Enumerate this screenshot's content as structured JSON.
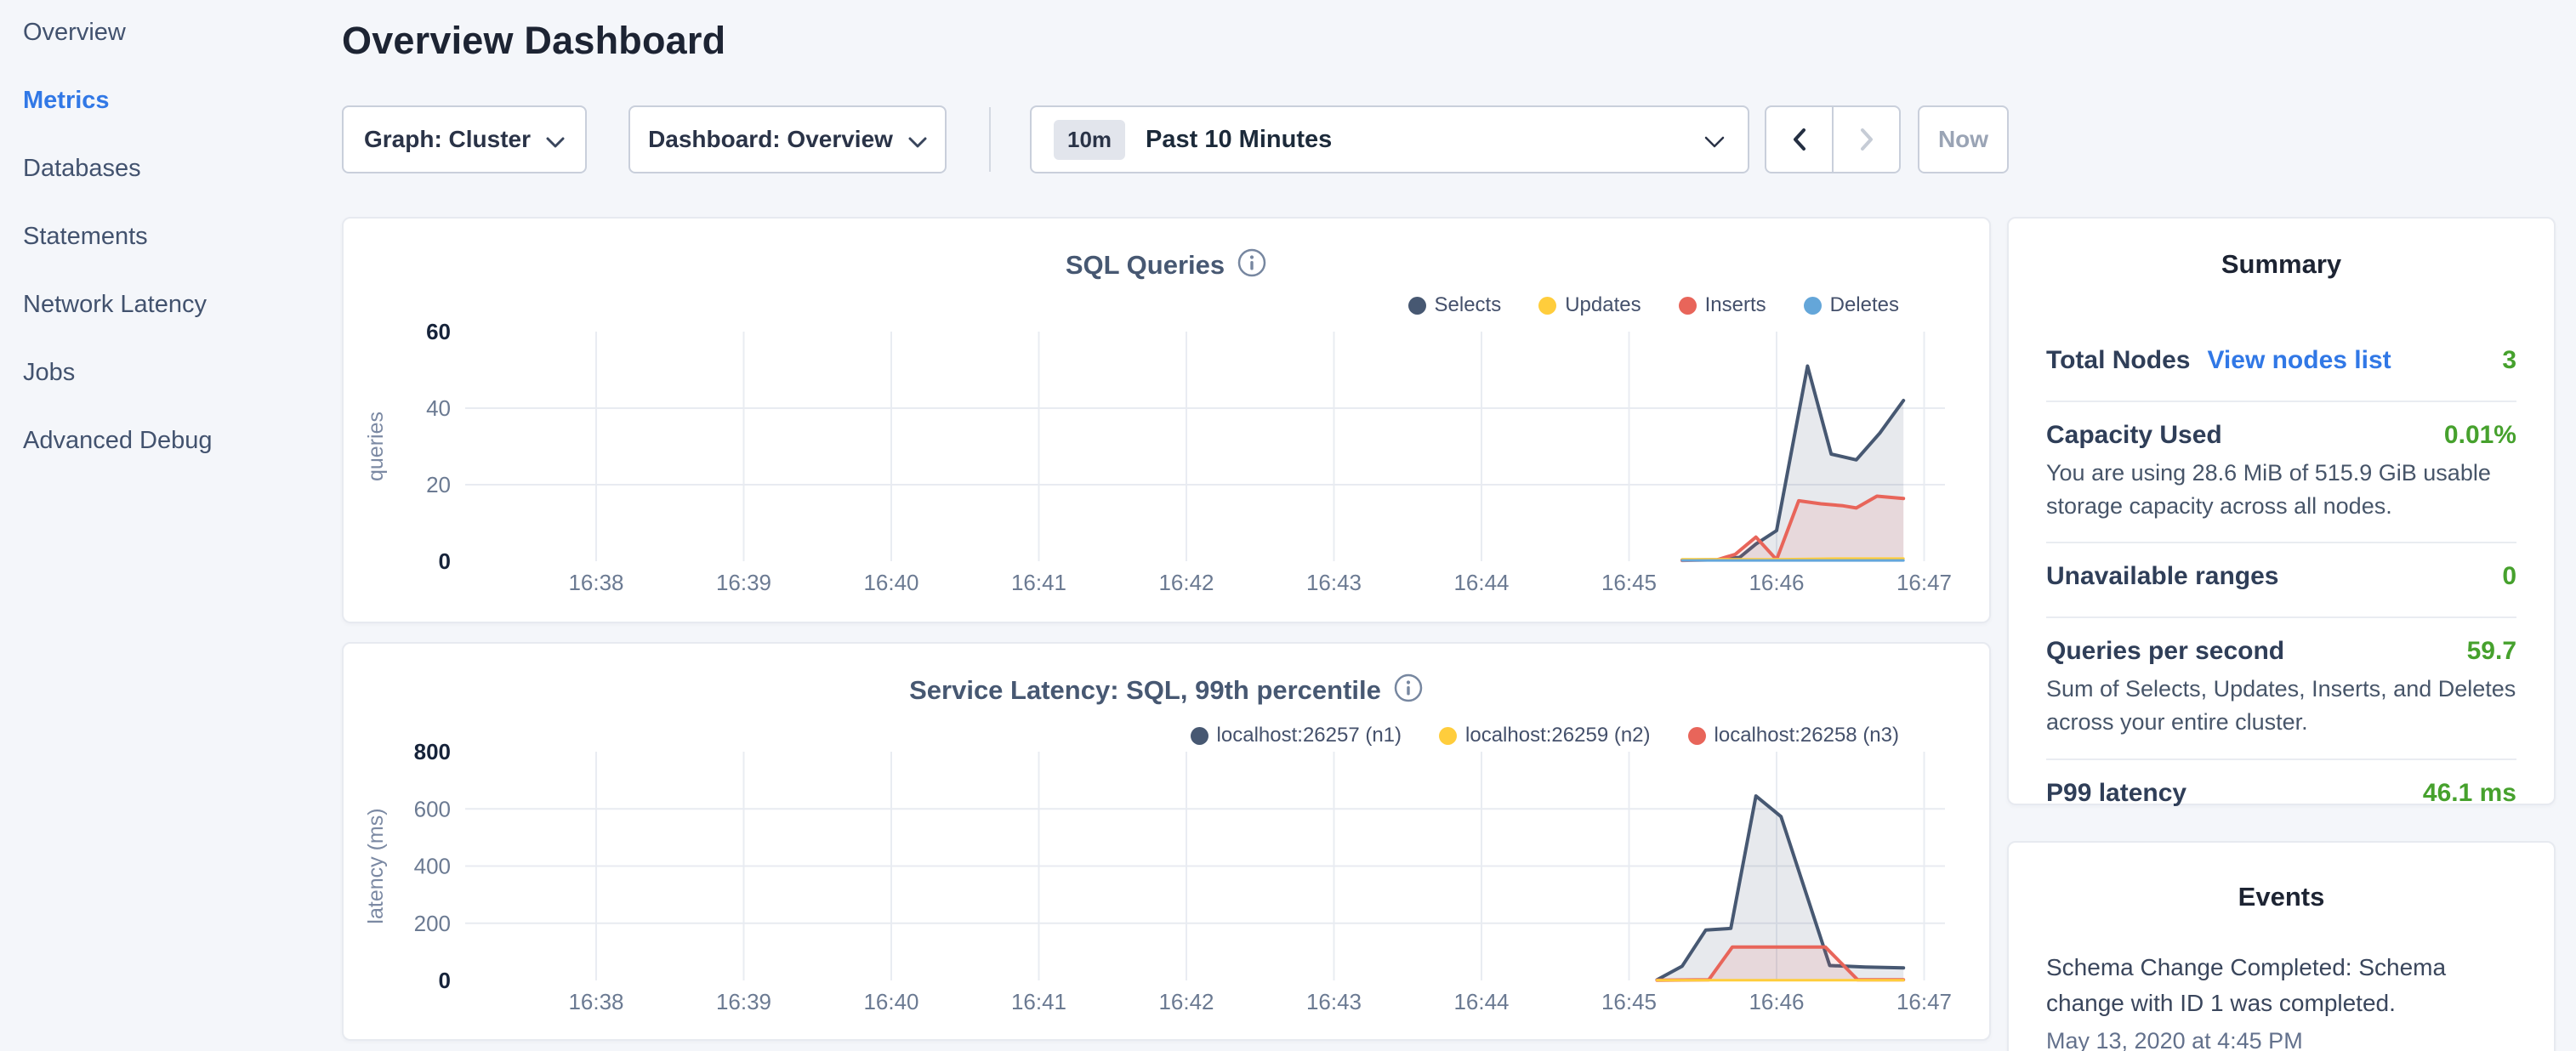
{
  "sidebar": {
    "items": [
      {
        "label": "Overview",
        "active": false
      },
      {
        "label": "Metrics",
        "active": true
      },
      {
        "label": "Databases",
        "active": false
      },
      {
        "label": "Statements",
        "active": false
      },
      {
        "label": "Network Latency",
        "active": false
      },
      {
        "label": "Jobs",
        "active": false
      },
      {
        "label": "Advanced Debug",
        "active": false
      }
    ]
  },
  "header": {
    "title": "Overview Dashboard"
  },
  "controls": {
    "graph_dropdown": "Graph: Cluster",
    "dashboard_dropdown": "Dashboard: Overview",
    "time_badge": "10m",
    "time_range": "Past 10 Minutes",
    "now_label": "Now"
  },
  "summary": {
    "title": "Summary",
    "items": [
      {
        "label": "Total Nodes",
        "link": "View nodes list",
        "value": "3"
      },
      {
        "label": "Capacity Used",
        "value": "0.01%",
        "description": "You are using 28.6 MiB of 515.9 GiB usable storage capacity across all nodes."
      },
      {
        "label": "Unavailable ranges",
        "value": "0"
      },
      {
        "label": "Queries per second",
        "value": "59.7",
        "description": "Sum of Selects, Updates, Inserts, and Deletes across your entire cluster."
      },
      {
        "label": "P99 latency",
        "value": "46.1 ms"
      }
    ]
  },
  "events": {
    "title": "Events",
    "items": [
      {
        "message": "Schema Change Completed: Schema change with ID 1 was completed.",
        "timestamp": "May 13, 2020 at 4:45 PM"
      }
    ]
  },
  "colors": {
    "accent_blue": "#3178e6",
    "status_green": "#46a12d",
    "selects_navy": "#475872",
    "updates_yellow": "#ffcd3c",
    "inserts_red": "#e8655a",
    "deletes_blue": "#64a6d9",
    "background": "#f4f6fa"
  },
  "chart_data": [
    {
      "type": "area",
      "title": "SQL Queries",
      "ylabel": "queries",
      "x_tick_labels": [
        "16:38",
        "16:39",
        "16:40",
        "16:41",
        "16:42",
        "16:43",
        "16:44",
        "16:45",
        "16:46",
        "16:47"
      ],
      "ylim": [
        0,
        60
      ],
      "y_ticks": [
        0,
        20,
        40,
        60
      ],
      "grid": true,
      "legend_position": "top-right",
      "series": [
        {
          "name": "Selects",
          "color": "#475872",
          "fill": "rgba(71,88,114,0.13)",
          "points": [
            [
              7.36,
              0.3
            ],
            [
              7.6,
              0.4
            ],
            [
              7.75,
              1.0
            ],
            [
              7.86,
              4.5
            ],
            [
              8.0,
              8.0
            ],
            [
              8.21,
              51.0
            ],
            [
              8.37,
              28.0
            ],
            [
              8.54,
              26.5
            ],
            [
              8.7,
              33.5
            ],
            [
              8.86,
              42.0
            ]
          ]
        },
        {
          "name": "Updates",
          "color": "#ffcd3c",
          "fill": "rgba(255,205,60,0.18)",
          "points": [
            [
              7.36,
              0.5
            ],
            [
              8.0,
              0.5
            ],
            [
              8.4,
              0.7
            ],
            [
              8.86,
              0.7
            ]
          ]
        },
        {
          "name": "Inserts",
          "color": "#e8655a",
          "fill": "rgba(232,101,90,0.12)",
          "points": [
            [
              7.36,
              0.2
            ],
            [
              7.6,
              0.4
            ],
            [
              7.72,
              1.8
            ],
            [
              7.86,
              6.3
            ],
            [
              8.0,
              0.4
            ],
            [
              8.15,
              15.8
            ],
            [
              8.3,
              15.0
            ],
            [
              8.45,
              14.5
            ],
            [
              8.54,
              13.9
            ],
            [
              8.68,
              17.0
            ],
            [
              8.86,
              16.4
            ]
          ]
        },
        {
          "name": "Deletes",
          "color": "#64a6d9",
          "fill": "rgba(100,166,217,0.18)",
          "points": [
            [
              7.36,
              0.2
            ],
            [
              8.86,
              0.2
            ]
          ]
        }
      ]
    },
    {
      "type": "area",
      "title": "Service Latency: SQL, 99th percentile",
      "ylabel": "latency (ms)",
      "x_tick_labels": [
        "16:38",
        "16:39",
        "16:40",
        "16:41",
        "16:42",
        "16:43",
        "16:44",
        "16:45",
        "16:46",
        "16:47"
      ],
      "ylim": [
        0,
        800
      ],
      "y_ticks": [
        0,
        200,
        400,
        600,
        800
      ],
      "grid": true,
      "legend_position": "top-right",
      "series": [
        {
          "name": "localhost:26257 (n1)",
          "color": "#475872",
          "fill": "rgba(71,88,114,0.13)",
          "points": [
            [
              7.19,
              2
            ],
            [
              7.36,
              50
            ],
            [
              7.52,
              176
            ],
            [
              7.69,
              182
            ],
            [
              7.86,
              645
            ],
            [
              8.03,
              573
            ],
            [
              8.36,
              52
            ],
            [
              8.6,
              47
            ],
            [
              8.86,
              44
            ]
          ]
        },
        {
          "name": "localhost:26259 (n2)",
          "color": "#ffcd3c",
          "fill": "rgba(255,205,60,0.18)",
          "points": [
            [
              7.19,
              1
            ],
            [
              8.86,
              1
            ]
          ]
        },
        {
          "name": "localhost:26258 (n3)",
          "color": "#e8655a",
          "fill": "rgba(232,101,90,0.12)",
          "points": [
            [
              7.19,
              1
            ],
            [
              7.54,
              2
            ],
            [
              7.7,
              117
            ],
            [
              8.33,
              117
            ],
            [
              8.55,
              2
            ],
            [
              8.86,
              2
            ]
          ]
        }
      ]
    }
  ]
}
